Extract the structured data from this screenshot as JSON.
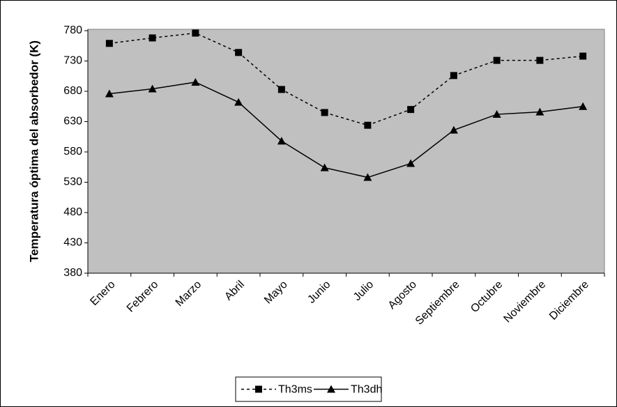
{
  "chart_data": {
    "type": "line",
    "y_label": "Temperatura óptima del absorbedor (K)",
    "categories": [
      "Enero",
      "Febrero",
      "Marzo",
      "Abril",
      "Mayo",
      "Junio",
      "Julio",
      "Agosto",
      "Septiembre",
      "Octubre",
      "Noviembre",
      "Diciembre"
    ],
    "series": [
      {
        "name": "Th3ms",
        "color": "#000000",
        "line_style": "dashed",
        "marker": "square",
        "values": [
          759,
          768,
          776,
          744,
          683,
          645,
          624,
          650,
          706,
          731,
          731,
          738
        ]
      },
      {
        "name": "Th3dh",
        "color": "#000000",
        "line_style": "solid",
        "marker": "triangle",
        "values": [
          676,
          684,
          695,
          662,
          598,
          554,
          538,
          561,
          616,
          642,
          646,
          655
        ]
      }
    ],
    "ylim": [
      380,
      780
    ],
    "yticks": [
      380,
      430,
      480,
      530,
      580,
      630,
      680,
      730,
      780
    ],
    "plot_background": "#c0c0c0",
    "legend": "bottom"
  }
}
